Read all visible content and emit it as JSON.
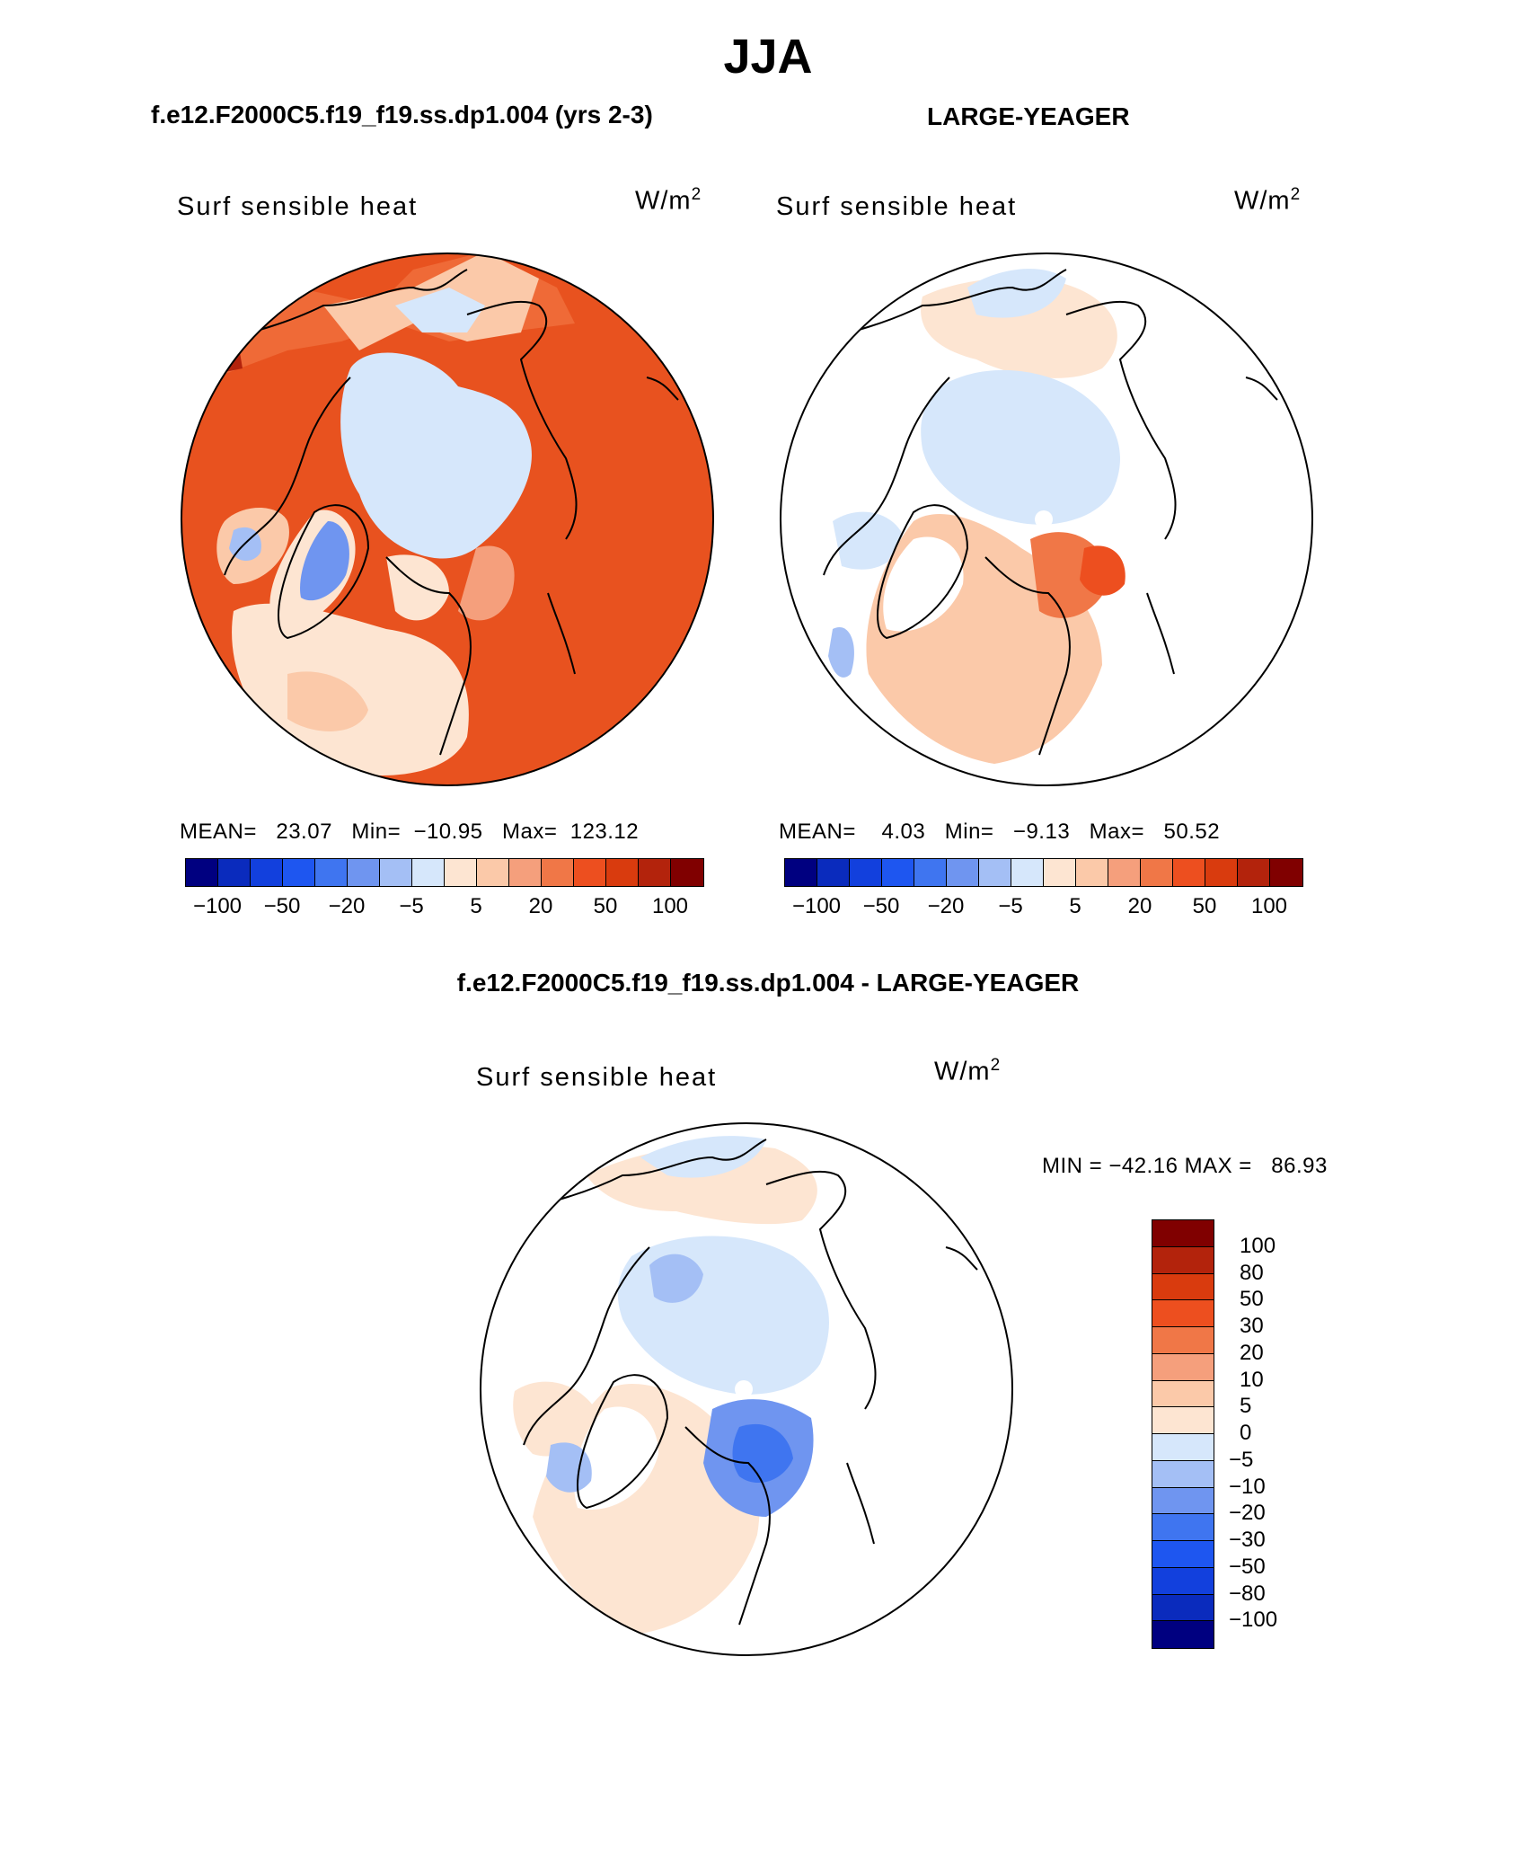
{
  "chart_data": {
    "type": "heatmap",
    "title": "JJA",
    "difference_title": "f.e12.F2000C5.f19_f19.ss.dp1.004 - LARGE-YEAGER",
    "panels": [
      {
        "run_title": "f.e12.F2000C5.f19_f19.ss.dp1.004 (yrs 2-3)",
        "variable": "Surf sensible heat",
        "units_base": "W/m",
        "units_exp": "2",
        "stats_line": "MEAN=   23.07   Min=  −10.95   Max=  123.12",
        "mean": 23.07,
        "min": -10.95,
        "max": 123.12
      },
      {
        "run_title": "LARGE-YEAGER",
        "variable": "Surf sensible heat",
        "units_base": "W/m",
        "units_exp": "2",
        "stats_line": "MEAN=    4.03   Min=   −9.13   Max=   50.52",
        "mean": 4.03,
        "min": -9.13,
        "max": 50.52
      },
      {
        "variable": "Surf sensible heat",
        "units_base": "W/m",
        "units_exp": "2",
        "stats_line": "MIN = −42.16 MAX =   86.93",
        "mean": null,
        "min": -42.16,
        "max": 86.93
      }
    ],
    "top_colorbar": {
      "colors": [
        "#000080",
        "#0a2bbd",
        "#1240dd",
        "#1e56f0",
        "#3f75f0",
        "#6f95f0",
        "#a4bff5",
        "#d6e7fb",
        "#fde5d2",
        "#fbc9a9",
        "#f59f7c",
        "#f07747",
        "#ed4f1f",
        "#d93b0e",
        "#b3230c",
        "#800000"
      ],
      "tick_labels": [
        "−100",
        "−50",
        "−20",
        "−5",
        "5",
        "20",
        "50",
        "100"
      ],
      "tick_boundaries": [
        1,
        3,
        5,
        7,
        9,
        11,
        13,
        15
      ]
    },
    "diff_colorbar": {
      "colors": [
        "#800000",
        "#b3230c",
        "#d93b0e",
        "#ed4f1f",
        "#f07747",
        "#f59f7c",
        "#fbc9a9",
        "#fde5d2",
        "#d6e7fb",
        "#a4bff5",
        "#6f95f0",
        "#3f75f0",
        "#1e56f0",
        "#1240dd",
        "#0a2bbd",
        "#000080"
      ],
      "tick_labels": [
        "100",
        "80",
        "50",
        "30",
        "20",
        "10",
        "5",
        "0",
        "−5",
        "−10",
        "−20",
        "−30",
        "−50",
        "−80",
        "−100"
      ]
    }
  }
}
